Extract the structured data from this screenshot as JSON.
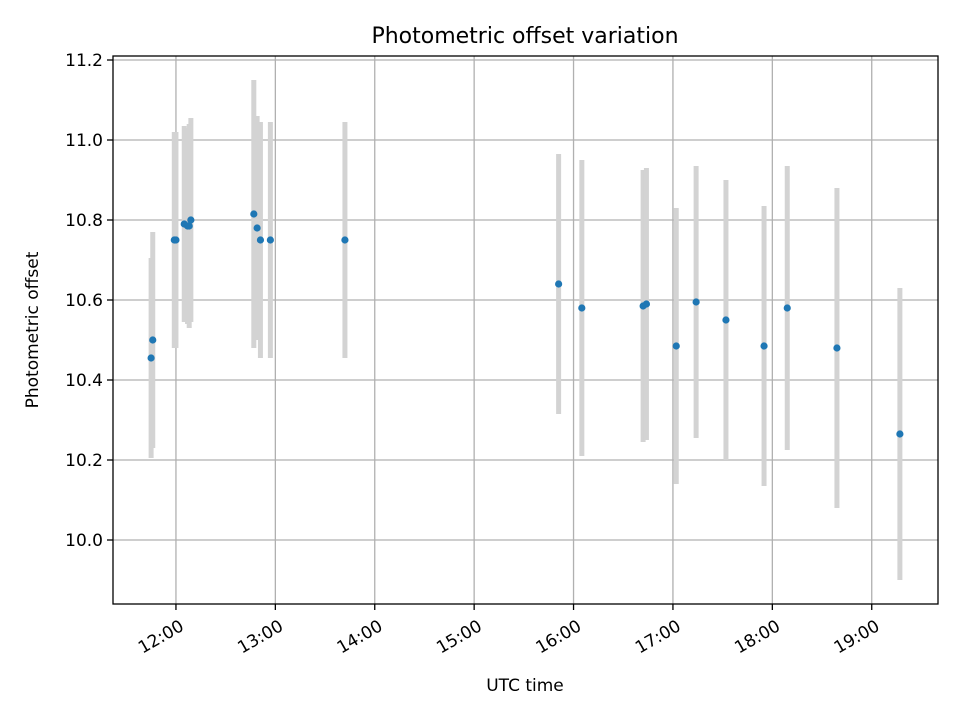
{
  "chart_data": {
    "type": "scatter",
    "title": "Photometric offset variation",
    "xlabel": "UTC time",
    "ylabel": "Photometric offset",
    "x_tick_labels": [
      "12:00",
      "13:00",
      "14:00",
      "15:00",
      "16:00",
      "17:00",
      "18:00",
      "19:00"
    ],
    "x_ticks": [
      "12:00",
      "13:00",
      "14:00",
      "15:00",
      "16:00",
      "17:00",
      "18:00",
      "19:00"
    ],
    "y_ticks": [
      10.0,
      10.2,
      10.4,
      10.6,
      10.8,
      11.0,
      11.2
    ],
    "y_tick_labels": [
      "10.0",
      "10.2",
      "10.4",
      "10.6",
      "10.8",
      "11.0",
      "11.2"
    ],
    "xlim": [
      "11:22",
      "19:40"
    ],
    "ylim": [
      9.84,
      11.21
    ],
    "grid": true,
    "point_color": "#1f77b4",
    "errorbar_color": "#d3d3d3",
    "points": [
      {
        "x": "11:45",
        "y": 10.455,
        "yerr": 0.25
      },
      {
        "x": "11:46",
        "y": 10.5,
        "yerr": 0.27
      },
      {
        "x": "11:59",
        "y": 10.75,
        "yerr": 0.27
      },
      {
        "x": "12:00",
        "y": 10.75,
        "yerr": 0.27
      },
      {
        "x": "12:05",
        "y": 10.79,
        "yerr": 0.245
      },
      {
        "x": "12:07",
        "y": 10.785,
        "yerr": 0.245
      },
      {
        "x": "12:08",
        "y": 10.785,
        "yerr": 0.255
      },
      {
        "x": "12:09",
        "y": 10.8,
        "yerr": 0.255
      },
      {
        "x": "12:47",
        "y": 10.815,
        "yerr": 0.335
      },
      {
        "x": "12:49",
        "y": 10.78,
        "yerr": 0.28
      },
      {
        "x": "12:51",
        "y": 10.75,
        "yerr": 0.295
      },
      {
        "x": "12:57",
        "y": 10.75,
        "yerr": 0.295
      },
      {
        "x": "13:42",
        "y": 10.75,
        "yerr": 0.295
      },
      {
        "x": "15:51",
        "y": 10.64,
        "yerr": 0.325
      },
      {
        "x": "16:05",
        "y": 10.58,
        "yerr": 0.37
      },
      {
        "x": "16:42",
        "y": 10.585,
        "yerr": 0.34
      },
      {
        "x": "16:44",
        "y": 10.59,
        "yerr": 0.34
      },
      {
        "x": "17:02",
        "y": 10.485,
        "yerr": 0.345
      },
      {
        "x": "17:14",
        "y": 10.595,
        "yerr": 0.34
      },
      {
        "x": "17:32",
        "y": 10.55,
        "yerr": 0.35
      },
      {
        "x": "17:55",
        "y": 10.485,
        "yerr": 0.35
      },
      {
        "x": "18:09",
        "y": 10.58,
        "yerr": 0.355
      },
      {
        "x": "18:39",
        "y": 10.48,
        "yerr": 0.4
      },
      {
        "x": "19:17",
        "y": 10.265,
        "yerr": 0.365
      }
    ]
  }
}
